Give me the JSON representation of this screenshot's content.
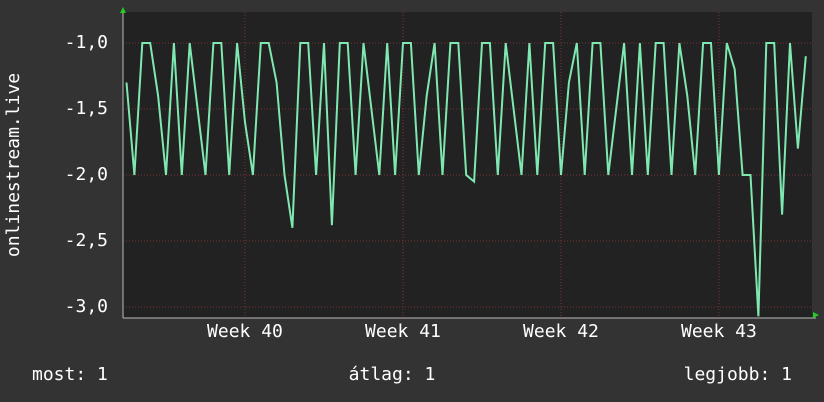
{
  "chart_data": {
    "type": "line",
    "y_label": "onlinestream.live",
    "x": [
      39.25,
      39.3,
      39.35,
      39.4,
      39.45,
      39.5,
      39.55,
      39.6,
      39.65,
      39.7,
      39.75,
      39.8,
      39.85,
      39.9,
      39.95,
      40.0,
      40.05,
      40.1,
      40.15,
      40.2,
      40.25,
      40.3,
      40.35,
      40.4,
      40.45,
      40.5,
      40.55,
      40.6,
      40.65,
      40.7,
      40.75,
      40.8,
      40.85,
      40.9,
      40.95,
      41.0,
      41.05,
      41.1,
      41.15,
      41.2,
      41.25,
      41.3,
      41.35,
      41.4,
      41.45,
      41.5,
      41.55,
      41.6,
      41.65,
      41.7,
      41.75,
      41.8,
      41.85,
      41.9,
      41.95,
      42.0,
      42.05,
      42.1,
      42.15,
      42.2,
      42.25,
      42.3,
      42.35,
      42.4,
      42.45,
      42.5,
      42.55,
      42.6,
      42.65,
      42.7,
      42.75,
      42.8,
      42.85,
      42.9,
      42.95,
      43.0,
      43.05,
      43.1,
      43.15,
      43.2,
      43.25,
      43.3,
      43.35,
      43.4,
      43.45,
      43.5,
      43.55
    ],
    "values": [
      -1.3,
      -2,
      -1,
      -1,
      -1.4,
      -2,
      -1,
      -2,
      -1,
      -1.5,
      -2,
      -1,
      -1,
      -2,
      -1,
      -1.6,
      -2,
      -1,
      -1,
      -1.3,
      -2,
      -2.4,
      -1,
      -1,
      -2,
      -1,
      -2.38,
      -1,
      -1,
      -2,
      -1,
      -1.5,
      -2,
      -1,
      -2,
      -1,
      -1,
      -2,
      -1.4,
      -1,
      -2,
      -1,
      -1,
      -2,
      -2.05,
      -1,
      -1,
      -2,
      -1,
      -1.5,
      -2,
      -1,
      -2,
      -1,
      -1,
      -2,
      -1.3,
      -1,
      -2,
      -1,
      -1,
      -2,
      -1.5,
      -1,
      -2,
      -1,
      -2,
      -1,
      -1,
      -2,
      -1,
      -1.4,
      -2,
      -1,
      -1,
      -2,
      -1,
      -1.2,
      -2,
      -2,
      -3.07,
      -1,
      -1,
      -2.3,
      -1,
      -1.8,
      -1.1
    ],
    "color": "#7fe8b0",
    "xlim": [
      39.228,
      43.589
    ],
    "xticks": [
      {
        "value": 40,
        "label": "Week 40"
      },
      {
        "value": 41,
        "label": "Week 41"
      },
      {
        "value": 42,
        "label": "Week 42"
      },
      {
        "value": 43,
        "label": "Week 43"
      }
    ],
    "ylim": [
      -3.083,
      -0.765
    ],
    "yticks": [
      {
        "value": -1,
        "label": "-1,0"
      },
      {
        "value": -1.5,
        "label": "-1,5"
      },
      {
        "value": -2,
        "label": "-2,0"
      },
      {
        "value": -2.5,
        "label": "-2,5"
      },
      {
        "value": -3,
        "label": "-3,0"
      }
    ],
    "grid": true,
    "summary": [
      "most: 1",
      "átlag: 1",
      "legjobb: 1"
    ]
  }
}
